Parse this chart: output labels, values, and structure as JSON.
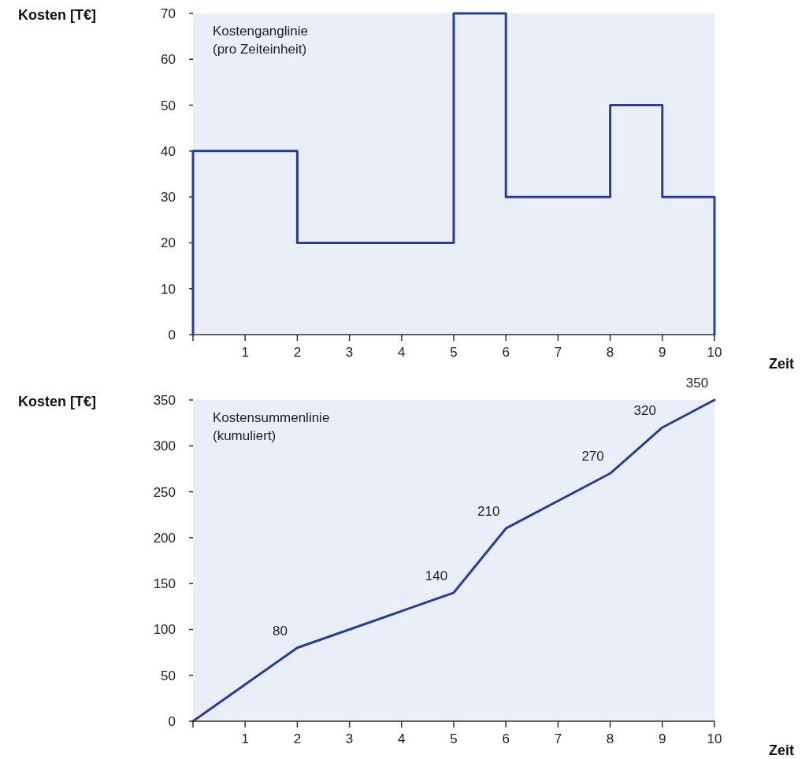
{
  "chart_data": [
    {
      "type": "step",
      "title": "Kostenganglinie\n(pro Zeiteinheit)",
      "xlabel": "Zeit",
      "ylabel": "Kosten [T€]",
      "x": [
        0,
        0,
        2,
        5,
        6,
        8,
        9,
        10,
        10
      ],
      "series": [
        {
          "color": "#2b3f8f",
          "values": [
            0,
            40,
            20,
            70,
            30,
            50,
            30,
            30,
            0
          ]
        }
      ],
      "xlim": [
        0,
        10
      ],
      "xticks": [
        {
          "value": 0,
          "label": null
        },
        1,
        2,
        3,
        4,
        5,
        6,
        7,
        8,
        9,
        10
      ],
      "ylim": [
        0,
        70
      ],
      "yticks": [
        0,
        10,
        20,
        30,
        40,
        50,
        60,
        70
      ],
      "grid": false
    },
    {
      "type": "line",
      "title": "Kostensummenlinie\n(kumuliert)",
      "xlabel": "Zeit",
      "ylabel": "Kosten [T€]",
      "x": [
        0,
        2,
        5,
        6,
        8,
        9,
        10
      ],
      "series": [
        {
          "color": "#2b3f8f",
          "values": [
            0,
            80,
            140,
            210,
            270,
            320,
            350
          ],
          "value_labels": [
            null,
            "80",
            "140",
            "210",
            "270",
            "320",
            "350"
          ]
        }
      ],
      "xlim": [
        0,
        10
      ],
      "xticks": [
        {
          "value": 0,
          "label": null
        },
        1,
        2,
        3,
        4,
        5,
        6,
        7,
        8,
        9,
        10
      ],
      "ylim": [
        0,
        350
      ],
      "yticks": [
        0,
        50,
        100,
        150,
        200,
        250,
        300,
        350
      ],
      "grid": false
    }
  ]
}
